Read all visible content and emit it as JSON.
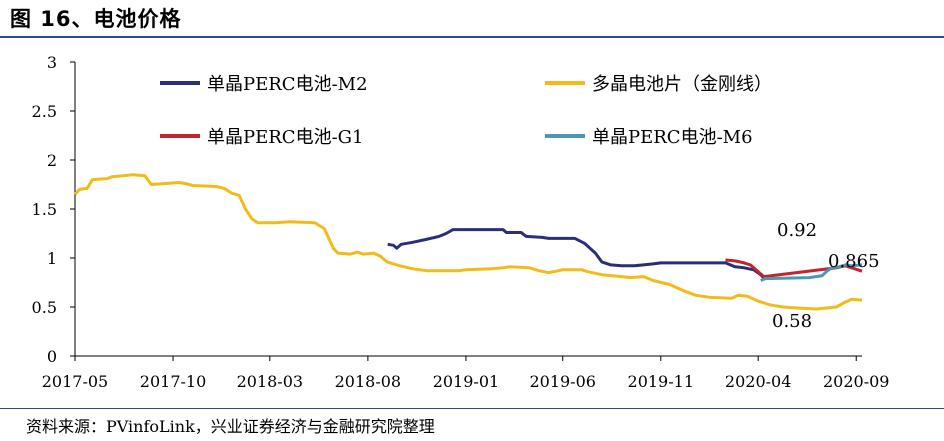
{
  "header": {
    "title": "图 16、电池价格"
  },
  "footer": {
    "source": "资料来源：PVinfoLink，兴业证券经济与金融研究院整理"
  },
  "colors": {
    "m2": "#2b2f7a",
    "multi": "#f3bb1a",
    "g1": "#c0262b",
    "m6": "#4a97b6",
    "rule": "#2b4c8c"
  },
  "chart_data": {
    "type": "line",
    "title": "电池价格",
    "xlabel": "",
    "ylabel": "",
    "ylim": [
      0,
      3
    ],
    "y_ticks": [
      "0",
      "0.5",
      "1",
      "1.5",
      "2",
      "2.5",
      "3"
    ],
    "x_tick_labels": [
      "2017-05",
      "2017-10",
      "2018-03",
      "2018-08",
      "2019-01",
      "2019-06",
      "2019-11",
      "2020-04",
      "2020-09"
    ],
    "legend_position": "top",
    "series": [
      {
        "name": "单晶PERC电池-M2",
        "color": "#2b2f7a",
        "points": [
          [
            "2018-09-01",
            1.14
          ],
          [
            "2018-09-10",
            1.13
          ],
          [
            "2018-09-15",
            1.1
          ],
          [
            "2018-09-22",
            1.14
          ],
          [
            "2018-10-10",
            1.16
          ],
          [
            "2018-10-31",
            1.19
          ],
          [
            "2018-11-20",
            1.22
          ],
          [
            "2018-12-01",
            1.25
          ],
          [
            "2018-12-12",
            1.29
          ],
          [
            "2019-02-28",
            1.29
          ],
          [
            "2019-03-05",
            1.26
          ],
          [
            "2019-03-28",
            1.26
          ],
          [
            "2019-04-05",
            1.22
          ],
          [
            "2019-04-30",
            1.21
          ],
          [
            "2019-05-10",
            1.2
          ],
          [
            "2019-06-20",
            1.2
          ],
          [
            "2019-07-05",
            1.15
          ],
          [
            "2019-07-22",
            1.05
          ],
          [
            "2019-08-01",
            0.96
          ],
          [
            "2019-08-15",
            0.93
          ],
          [
            "2019-09-01",
            0.92
          ],
          [
            "2019-09-20",
            0.92
          ],
          [
            "2019-10-05",
            0.93
          ],
          [
            "2019-10-20",
            0.94
          ],
          [
            "2019-11-01",
            0.95
          ],
          [
            "2020-02-10",
            0.95
          ],
          [
            "2020-02-25",
            0.91
          ],
          [
            "2020-03-10",
            0.9
          ],
          [
            "2020-03-25",
            0.88
          ],
          [
            "2020-04-05",
            0.83
          ],
          [
            "2020-04-12",
            0.78
          ]
        ]
      },
      {
        "name": "多晶电池片（金刚线）",
        "color": "#f3bb1a",
        "points": [
          [
            "2017-05-01",
            1.65
          ],
          [
            "2017-05-08",
            1.7
          ],
          [
            "2017-05-20",
            1.71
          ],
          [
            "2017-05-28",
            1.8
          ],
          [
            "2017-06-20",
            1.81
          ],
          [
            "2017-06-28",
            1.83
          ],
          [
            "2017-07-31",
            1.85
          ],
          [
            "2017-08-18",
            1.84
          ],
          [
            "2017-08-28",
            1.75
          ],
          [
            "2017-09-20",
            1.76
          ],
          [
            "2017-10-10",
            1.77
          ],
          [
            "2017-10-20",
            1.76
          ],
          [
            "2017-11-01",
            1.74
          ],
          [
            "2017-12-08",
            1.73
          ],
          [
            "2017-12-20",
            1.71
          ],
          [
            "2018-01-01",
            1.66
          ],
          [
            "2018-01-12",
            1.64
          ],
          [
            "2018-01-22",
            1.5
          ],
          [
            "2018-02-01",
            1.4
          ],
          [
            "2018-02-10",
            1.36
          ],
          [
            "2018-03-10",
            1.36
          ],
          [
            "2018-04-01",
            1.37
          ],
          [
            "2018-05-10",
            1.36
          ],
          [
            "2018-05-25",
            1.3
          ],
          [
            "2018-06-01",
            1.2
          ],
          [
            "2018-06-08",
            1.1
          ],
          [
            "2018-06-15",
            1.05
          ],
          [
            "2018-07-05",
            1.04
          ],
          [
            "2018-07-15",
            1.06
          ],
          [
            "2018-07-25",
            1.04
          ],
          [
            "2018-08-10",
            1.05
          ],
          [
            "2018-08-20",
            1.02
          ],
          [
            "2018-08-31",
            0.96
          ],
          [
            "2018-09-20",
            0.92
          ],
          [
            "2018-10-10",
            0.89
          ],
          [
            "2018-11-01",
            0.87
          ],
          [
            "2018-12-20",
            0.87
          ],
          [
            "2019-01-01",
            0.88
          ],
          [
            "2019-02-10",
            0.89
          ],
          [
            "2019-02-28",
            0.9
          ],
          [
            "2019-03-10",
            0.91
          ],
          [
            "2019-04-10",
            0.9
          ],
          [
            "2019-04-25",
            0.87
          ],
          [
            "2019-05-10",
            0.85
          ],
          [
            "2019-06-01",
            0.88
          ],
          [
            "2019-07-01",
            0.88
          ],
          [
            "2019-07-10",
            0.86
          ],
          [
            "2019-08-01",
            0.83
          ],
          [
            "2019-09-01",
            0.81
          ],
          [
            "2019-09-15",
            0.8
          ],
          [
            "2019-10-05",
            0.81
          ],
          [
            "2019-10-20",
            0.77
          ],
          [
            "2019-11-15",
            0.73
          ],
          [
            "2019-12-05",
            0.67
          ],
          [
            "2019-12-25",
            0.62
          ],
          [
            "2020-01-15",
            0.6
          ],
          [
            "2020-02-20",
            0.59
          ],
          [
            "2020-03-01",
            0.62
          ],
          [
            "2020-03-15",
            0.61
          ],
          [
            "2020-04-01",
            0.56
          ],
          [
            "2020-04-20",
            0.52
          ],
          [
            "2020-05-10",
            0.5
          ],
          [
            "2020-06-01",
            0.49
          ],
          [
            "2020-07-01",
            0.48
          ],
          [
            "2020-08-01",
            0.5
          ],
          [
            "2020-08-15",
            0.55
          ],
          [
            "2020-08-25",
            0.58
          ],
          [
            "2020-09-10",
            0.57
          ]
        ]
      },
      {
        "name": "单晶PERC电池-G1",
        "color": "#c0262b",
        "points": [
          [
            "2020-02-10",
            0.98
          ],
          [
            "2020-02-25",
            0.97
          ],
          [
            "2020-03-10",
            0.95
          ],
          [
            "2020-03-20",
            0.93
          ],
          [
            "2020-04-01",
            0.86
          ],
          [
            "2020-04-10",
            0.81
          ],
          [
            "2020-08-01",
            0.9
          ],
          [
            "2020-08-15",
            0.92
          ],
          [
            "2020-08-25",
            0.9
          ],
          [
            "2020-09-10",
            0.865
          ]
        ]
      },
      {
        "name": "单晶PERC电池-M6",
        "color": "#4a97b6",
        "points": [
          [
            "2020-04-05",
            0.77
          ],
          [
            "2020-04-12",
            0.79
          ],
          [
            "2020-06-20",
            0.8
          ],
          [
            "2020-07-10",
            0.82
          ],
          [
            "2020-07-18",
            0.87
          ],
          [
            "2020-07-25",
            0.9
          ],
          [
            "2020-08-05",
            0.91
          ],
          [
            "2020-08-15",
            0.93
          ],
          [
            "2020-08-25",
            0.92
          ],
          [
            "2020-09-10",
            0.93
          ]
        ]
      }
    ],
    "annotations": [
      "0.92",
      "0.865",
      "0.58"
    ]
  }
}
